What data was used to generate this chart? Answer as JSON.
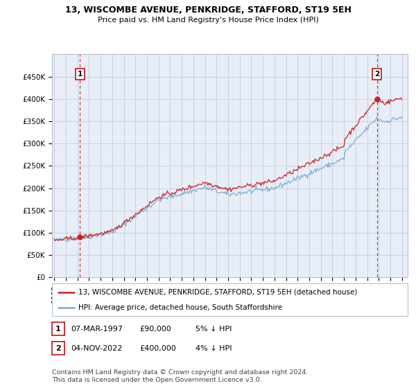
{
  "title": "13, WISCOMBE AVENUE, PENKRIDGE, STAFFORD, ST19 5EH",
  "subtitle": "Price paid vs. HM Land Registry's House Price Index (HPI)",
  "ylim": [
    0,
    500000
  ],
  "yticks": [
    0,
    50000,
    100000,
    150000,
    200000,
    250000,
    300000,
    350000,
    400000,
    450000
  ],
  "ytick_labels": [
    "£0",
    "£50K",
    "£100K",
    "£150K",
    "£200K",
    "£250K",
    "£300K",
    "£350K",
    "£400K",
    "£450K"
  ],
  "hpi_color": "#7aaad4",
  "price_color": "#cc2222",
  "annotation_color": "#cc2222",
  "plot_bg_color": "#e8eef8",
  "background_color": "#ffffff",
  "grid_color": "#c8d0dc",
  "sale1_year": 1997.2,
  "sale1_price": 90000,
  "sale2_year": 2022.84,
  "sale2_price": 400000,
  "legend_label1": "13, WISCOMBE AVENUE, PENKRIDGE, STAFFORD, ST19 5EH (detached house)",
  "legend_label2": "HPI: Average price, detached house, South Staffordshire",
  "note1_date": "07-MAR-1997",
  "note1_price": "£90,000",
  "note1_hpi": "5% ↓ HPI",
  "note2_date": "04-NOV-2022",
  "note2_price": "£400,000",
  "note2_hpi": "4% ↓ HPI",
  "footer": "Contains HM Land Registry data © Crown copyright and database right 2024.\nThis data is licensed under the Open Government Licence v3.0.",
  "title_fontsize": 9,
  "subtitle_fontsize": 8,
  "tick_fontsize": 7.5,
  "legend_fontsize": 7.5,
  "note_fontsize": 8
}
